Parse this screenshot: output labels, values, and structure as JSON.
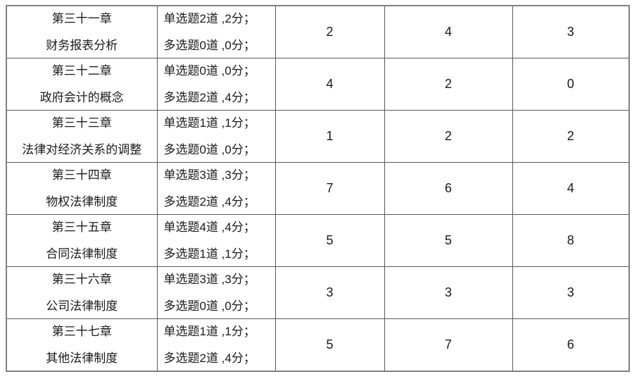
{
  "table": {
    "rows": [
      {
        "chapter_line1": "第三十一章",
        "chapter_line2": "财务报表分析",
        "single_choice": "单选题2道 ,2分；",
        "multi_choice": "多选题0道 ,0分；",
        "col_a": "2",
        "col_b": "4",
        "col_c": "3"
      },
      {
        "chapter_line1": "第三十二章",
        "chapter_line2": "政府会计的概念",
        "single_choice": "单选题0道 ,0分；",
        "multi_choice": "多选题2道 ,4分；",
        "col_a": "4",
        "col_b": "2",
        "col_c": "0"
      },
      {
        "chapter_line1": "第三十三章",
        "chapter_line2": "法律对经济关系的调整",
        "single_choice": "单选题1道 ,1分；",
        "multi_choice": "多选题0道 ,0分；",
        "col_a": "1",
        "col_b": "2",
        "col_c": "2"
      },
      {
        "chapter_line1": "第三十四章",
        "chapter_line2": "物权法律制度",
        "single_choice": "单选题3道 ,3分；",
        "multi_choice": "多选题2道 ,4分；",
        "col_a": "7",
        "col_b": "6",
        "col_c": "4"
      },
      {
        "chapter_line1": "第三十五章",
        "chapter_line2": "合同法律制度",
        "single_choice": "单选题4道 ,4分；",
        "multi_choice": "多选题1道 ,1分；",
        "col_a": "5",
        "col_b": "5",
        "col_c": "8"
      },
      {
        "chapter_line1": "第三十六章",
        "chapter_line2": "公司法律制度",
        "single_choice": "单选题3道 ,3分；",
        "multi_choice": "多选题0道 ,0分；",
        "col_a": "3",
        "col_b": "3",
        "col_c": "3"
      },
      {
        "chapter_line1": "第三十七章",
        "chapter_line2": "其他法律制度",
        "single_choice": "单选题1道 ,1分；",
        "multi_choice": "多选题2道 ,4分；",
        "col_a": "5",
        "col_b": "7",
        "col_c": "6"
      }
    ]
  },
  "colors": {
    "border_outer": "#808080",
    "border_inner": "#595959",
    "text": "#1a1a1a"
  }
}
